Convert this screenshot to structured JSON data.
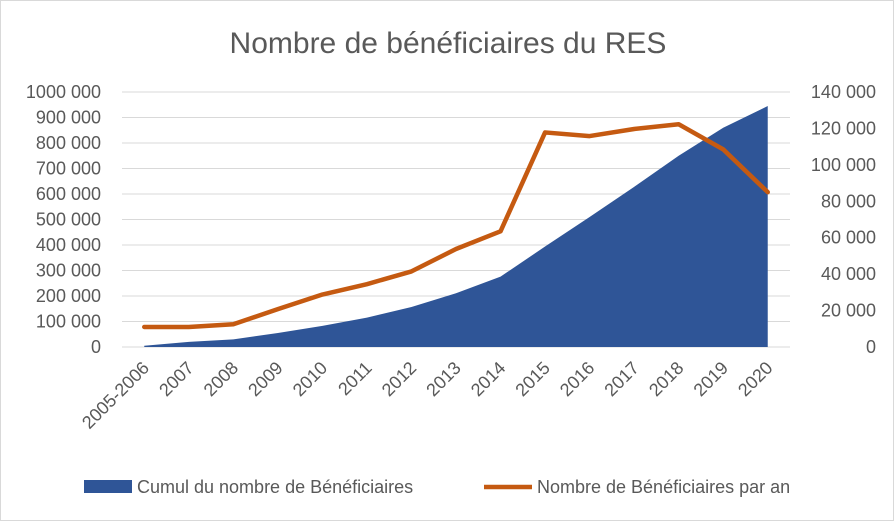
{
  "chart_data": {
    "type": "area+line",
    "title": "Nombre de bénéficiaires du RES",
    "categories": [
      "2005-2006",
      "2007",
      "2008",
      "2009",
      "2010",
      "2011",
      "2012",
      "2013",
      "2014",
      "2015",
      "2016",
      "2017",
      "2018",
      "2019",
      "2020"
    ],
    "y_left": {
      "range": [
        0,
        1000000
      ],
      "ticks": [
        0,
        100000,
        200000,
        300000,
        400000,
        500000,
        600000,
        700000,
        800000,
        900000,
        1000000
      ],
      "tick_labels": [
        "0",
        "100 000",
        "200 000",
        "300 000",
        "400 000",
        "500 000",
        "600 000",
        "700 000",
        "800 000",
        "900 000",
        "1000 000"
      ]
    },
    "y_right": {
      "range": [
        0,
        140000
      ],
      "ticks": [
        0,
        20000,
        40000,
        60000,
        80000,
        100000,
        120000,
        140000
      ],
      "tick_labels": [
        "0",
        "20 000",
        "40 000",
        "60 000",
        "80 000",
        "100 000",
        "120 000",
        "140 000"
      ]
    },
    "grid": true,
    "legend_position": "bottom",
    "series": [
      {
        "name": "Cumul du nombre de Bénéficiaires",
        "type": "area",
        "axis": "left",
        "color": "#2f5597",
        "values": [
          5000,
          20000,
          30000,
          55000,
          83000,
          115000,
          157000,
          211000,
          276000,
          394000,
          510000,
          628000,
          750000,
          860000,
          945000
        ]
      },
      {
        "name": "Nombre de Bénéficiaires par an",
        "type": "line",
        "axis": "right",
        "color": "#c55a11",
        "values": [
          11000,
          11000,
          12500,
          20800,
          28800,
          34500,
          41500,
          53800,
          63500,
          117800,
          115800,
          119700,
          122300,
          108500,
          85000
        ]
      }
    ]
  }
}
